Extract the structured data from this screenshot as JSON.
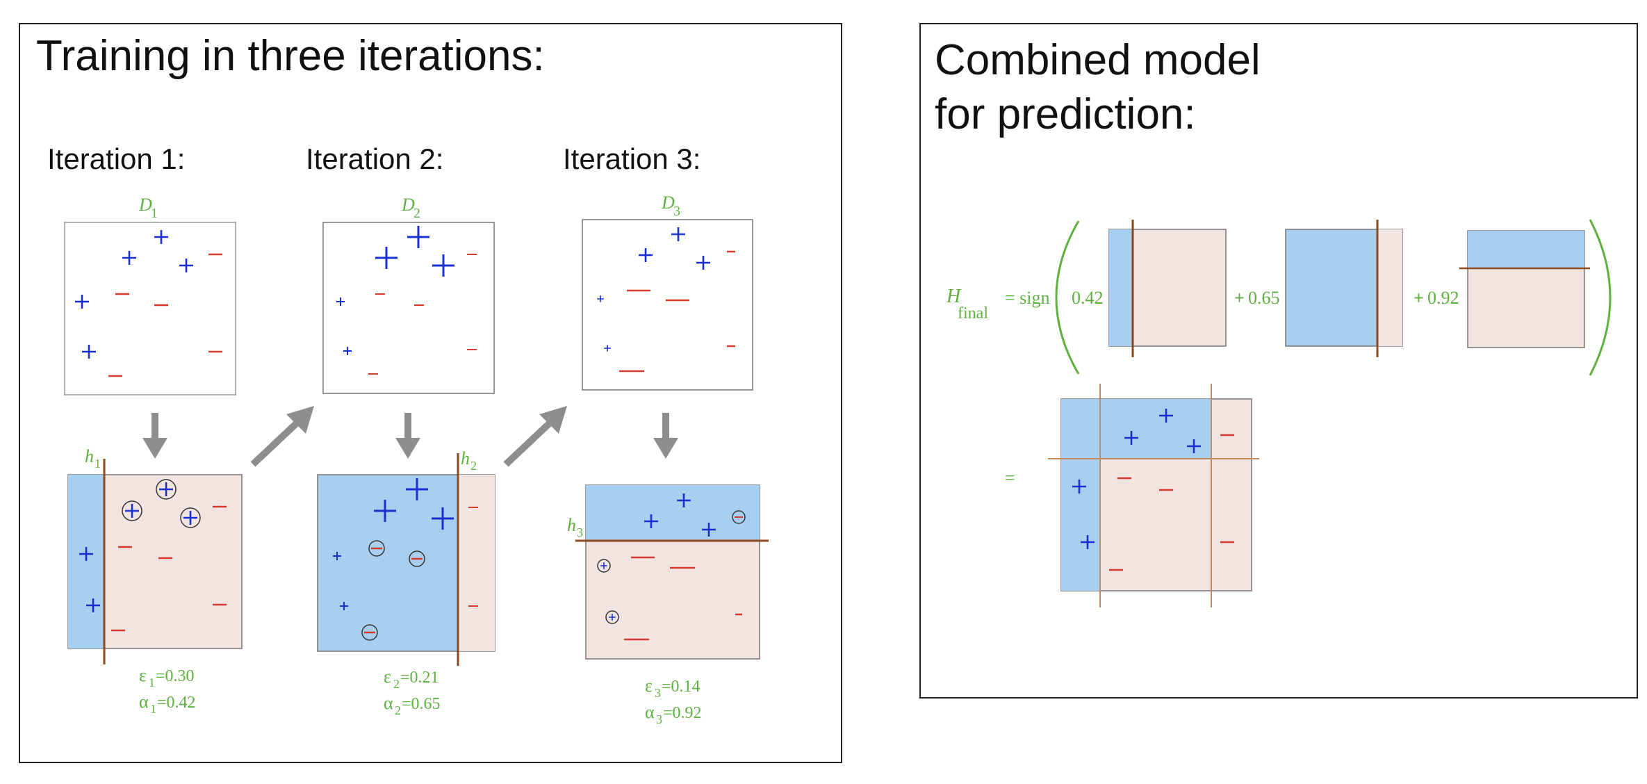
{
  "left_panel": {
    "title": "Training in three iterations:",
    "iterations": [
      {
        "label": "Iteration 1:",
        "dist": "D",
        "dist_sub": "1",
        "hyp": "h",
        "hyp_sub": "1",
        "eps_sym": "ε",
        "eps_sub": "1",
        "eps_val": "=0.30",
        "alpha_sym": "α",
        "alpha_sub": "1",
        "alpha_val": "=0.42"
      },
      {
        "label": "Iteration 2:",
        "dist": "D",
        "dist_sub": "2",
        "hyp": "h",
        "hyp_sub": "2",
        "eps_sym": "ε",
        "eps_sub": "2",
        "eps_val": "=0.21",
        "alpha_sym": "α",
        "alpha_sub": "2",
        "alpha_val": "=0.65"
      },
      {
        "label": "Iteration 3:",
        "dist": "D",
        "dist_sub": "3",
        "hyp": "h",
        "hyp_sub": "3",
        "eps_sym": "ε",
        "eps_sub": "3",
        "eps_val": "=0.14",
        "alpha_sym": "α",
        "alpha_sub": "3",
        "alpha_val": "=0.92"
      }
    ]
  },
  "right_panel": {
    "title_line1": "Combined model",
    "title_line2": "for prediction:",
    "formula": {
      "h": "H",
      "h_sub": "final",
      "eq_sign": "= sign",
      "coef1": "0.42",
      "plus2": "+",
      "coef2": "0.65",
      "plus3": "+",
      "coef3": "0.92",
      "result_eq": "="
    }
  },
  "colors": {
    "positive_region": "#a8cff0",
    "negative_region": "#f1e4e1",
    "plus": "#1a2fd0",
    "minus": "#d63a2c",
    "boundary": "#8c4a1e",
    "label_green": "#5eb13f",
    "arrow": "#8e8e8e"
  }
}
